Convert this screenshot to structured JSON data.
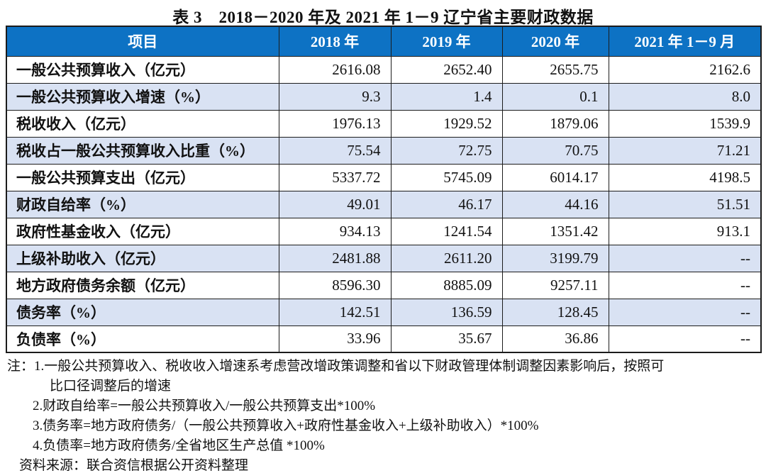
{
  "title": "表 3　2018－2020 年及 2021 年 1－9 辽宁省主要财政数据",
  "table": {
    "columns": [
      "项目",
      "2018 年",
      "2019 年",
      "2020 年",
      "2021 年 1－9 月"
    ],
    "rows": [
      {
        "label": "一般公共预算收入（亿元）",
        "values": [
          "2616.08",
          "2652.40",
          "2655.75",
          "2162.6"
        ]
      },
      {
        "label": "一般公共预算收入增速（%）",
        "values": [
          "9.3",
          "1.4",
          "0.1",
          "8.0"
        ]
      },
      {
        "label": "税收收入（亿元）",
        "values": [
          "1976.13",
          "1929.52",
          "1879.06",
          "1539.9"
        ]
      },
      {
        "label": "税收占一般公共预算收入比重（%）",
        "values": [
          "75.54",
          "72.75",
          "70.75",
          "71.21"
        ]
      },
      {
        "label": "一般公共预算支出（亿元）",
        "values": [
          "5337.72",
          "5745.09",
          "6014.17",
          "4198.5"
        ]
      },
      {
        "label": "财政自给率（%）",
        "values": [
          "49.01",
          "46.17",
          "44.16",
          "51.51"
        ]
      },
      {
        "label": "政府性基金收入（亿元）",
        "values": [
          "934.13",
          "1241.54",
          "1351.42",
          "913.1"
        ]
      },
      {
        "label": "上级补助收入（亿元）",
        "values": [
          "2481.88",
          "2611.20",
          "3199.79",
          "--"
        ]
      },
      {
        "label": "地方政府债务余额（亿元）",
        "values": [
          "8596.30",
          "8885.09",
          "9257.11",
          "--"
        ]
      },
      {
        "label": "债务率（%）",
        "values": [
          "142.51",
          "136.59",
          "128.45",
          "--"
        ]
      },
      {
        "label": "负债率（%）",
        "values": [
          "33.96",
          "35.67",
          "36.86",
          "--"
        ]
      }
    ]
  },
  "notes": {
    "lines": [
      "注：1.一般公共预算收入、税收收入增速系考虑营改增政策调整和省以下财政管理体制调整因素影响后，按照可",
      "比口径调整后的增速",
      "2.财政自给率=一般公共预算收入/一般公共预算支出*100%",
      "3.债务率=地方政府债务/（一般公共预算收入+政府性基金收入+上级补助收入）*100%",
      "4.负债率=地方政府债务/全省地区生产总值 *100%",
      "资料来源：联合资信根据公开资料整理"
    ]
  },
  "colors": {
    "header_bg": "#0d72c4",
    "stripe_bg": "#d9e2f3",
    "border": "#1c1c1c",
    "header_text": "#ffffff"
  }
}
